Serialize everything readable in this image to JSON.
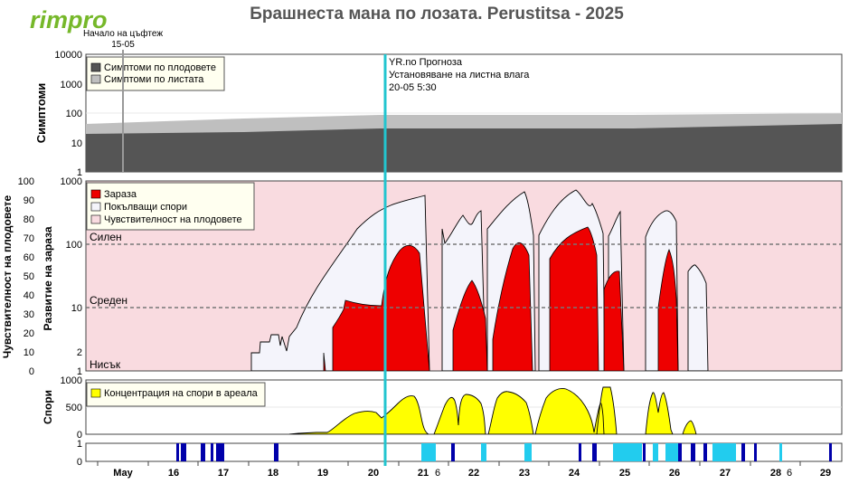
{
  "brand": {
    "logo_text": "rimpro"
  },
  "header": {
    "title": "Брашнеста мана по лозата.  Perustitsa - 2025"
  },
  "events": {
    "bloom_label_line1": "Начало на цъфтеж",
    "bloom_label_line2": "15-05",
    "forecast_line1": "YR.no Прогноза",
    "forecast_line2": "Установяване на листна влага",
    "forecast_line3": "20-05 5:30"
  },
  "colors": {
    "symptoms_fruit": "#555555",
    "symptoms_leaf": "#bfbfbf",
    "infection": "#ee0000",
    "germinating": "#f4f4fb",
    "fruit_sensitivity": "#f9dbe0",
    "spores": "#ffff00",
    "wet_leaf": "#0000aa",
    "wet_forecast": "#22ccee",
    "now_line": "#22c5cf",
    "bloom_line": "#999999"
  },
  "chart_data": [
    {
      "type": "area",
      "panel": "symptoms",
      "ylabel": "Симптоми",
      "yscale": "log",
      "ylim": [
        1,
        10000
      ],
      "yticks": [
        "10000",
        "1000",
        "100",
        "10",
        "1"
      ],
      "legend": [
        "Симптоми по плодовете",
        "Симптоми по листата"
      ],
      "series": [
        {
          "name": "Симптоми по плодовете",
          "x": [
            "15-05 00:00",
            "17-05 00:00",
            "20-05 00:00",
            "23-05 00:00",
            "26-05 00:00",
            "29-05 12:00"
          ],
          "values": [
            20,
            22,
            30,
            33,
            37,
            42
          ]
        },
        {
          "name": "Симптоми по листата",
          "x": [
            "15-05 00:00",
            "17-05 00:00",
            "20-05 00:00",
            "23-05 00:00",
            "26-05 00:00",
            "29-05 12:00"
          ],
          "values": [
            45,
            55,
            72,
            80,
            88,
            100
          ]
        }
      ]
    },
    {
      "type": "area",
      "panel": "infection",
      "ylabel": "Развитие на зараза",
      "ylabel_left": "Чувствителност на плодовете",
      "yscale": "log",
      "ylim": [
        1,
        1000
      ],
      "yticks_log": [
        "1000",
        "100",
        "10",
        "2",
        "1"
      ],
      "yticks_pct": [
        "100",
        "90",
        "80",
        "70",
        "60",
        "50",
        "40",
        "30",
        "20",
        "10",
        "0"
      ],
      "levels": [
        "Силен",
        "Среден",
        "Нисък"
      ],
      "legend": [
        "Зараза",
        "Покълващи спори",
        "Чувствителност на плодовете"
      ],
      "series": [
        {
          "name": "Покълващи спори",
          "x": [
            "18-05 00:00",
            "18-05 08:00",
            "18-05 16:00",
            "19-05 00:00",
            "19-05 12:00",
            "20-05 00:00",
            "20-05 10:00",
            "20-05 20:00",
            "21-05 00:00",
            "21-05 12:00",
            "22-05 00:00",
            "22-05 12:00",
            "23-05 00:00",
            "23-05 10:00",
            "24-05 00:00",
            "24-05 12:00",
            "25-05 00:00",
            "25-05 12:00",
            "26-05 00:00",
            "26-05 12:00",
            "27-05 00:00"
          ],
          "values": [
            1.6,
            2.5,
            4,
            10,
            60,
            250,
            540,
            640,
            880,
            300,
            420,
            560,
            700,
            760,
            840,
            870,
            520,
            1,
            410,
            1,
            52
          ]
        },
        {
          "name": "Зараза",
          "x": [
            "19-05 06:00",
            "19-05 12:00",
            "20-05 00:00",
            "20-05 10:00",
            "20-05 20:00",
            "21-05 00:00",
            "21-05 12:00",
            "22-05 00:00",
            "22-05 12:00",
            "23-05 00:00",
            "23-05 10:00",
            "24-05 00:00",
            "24-05 12:00",
            "25-05 00:00",
            "26-05 00:00"
          ],
          "values": [
            4,
            7,
            10,
            40,
            120,
            90,
            1,
            25,
            1,
            100,
            230,
            160,
            1,
            30,
            75
          ]
        }
      ]
    },
    {
      "type": "area",
      "panel": "spores",
      "ylabel": "Спори",
      "ylim": [
        0,
        1000
      ],
      "yticks": [
        "1000",
        "500",
        "0"
      ],
      "legend": [
        "Концентрация на спори в ареала"
      ],
      "series": [
        {
          "name": "Концентрация на спори в ареала",
          "x": [
            "18-05 12:00",
            "19-05 00:00",
            "19-05 12:00",
            "20-05 00:00",
            "20-05 12:00",
            "21-05 00:00",
            "21-05 12:00",
            "22-05 00:00",
            "22-05 12:00",
            "23-05 00:00",
            "23-05 12:00",
            "24-05 00:00",
            "24-05 12:00",
            "25-05 00:00",
            "25-05 12:00",
            "26-05 00:00",
            "26-05 12:00"
          ],
          "values": [
            20,
            100,
            300,
            400,
            600,
            700,
            690,
            620,
            700,
            800,
            760,
            840,
            700,
            880,
            780,
            420,
            230
          ]
        }
      ]
    },
    {
      "type": "bar",
      "panel": "leaf_wetness",
      "ylim": [
        0,
        1
      ],
      "yticks": [
        "1",
        "0"
      ],
      "series": [
        {
          "name": "measured",
          "x": [
            "16-05 02:00",
            "16-05 14:00",
            "17-05 02:00",
            "17-05 10:00",
            "17-05 20:00",
            "18-05 02:00"
          ],
          "values": [
            1,
            1,
            1,
            1,
            1,
            1
          ]
        },
        {
          "name": "forecast",
          "x": [
            "21-05 00:00",
            "21-05 14:00",
            "22-05 06:00",
            "23-05 02:00",
            "25-05 00:00",
            "25-05 14:00",
            "26-05 00:00",
            "26-05 16:00",
            "27-05 02:00",
            "28-05 04:00"
          ],
          "values": [
            1,
            1,
            1,
            1,
            1,
            1,
            1,
            1,
            1,
            1
          ]
        }
      ]
    },
    {
      "type": "line",
      "panel": "x-axis",
      "xticks": [
        "May",
        "16",
        "17",
        "18",
        "19",
        "20",
        "21",
        "6",
        "22",
        "23",
        "24",
        "25",
        "26",
        "27",
        "28",
        "6",
        "29"
      ]
    }
  ]
}
